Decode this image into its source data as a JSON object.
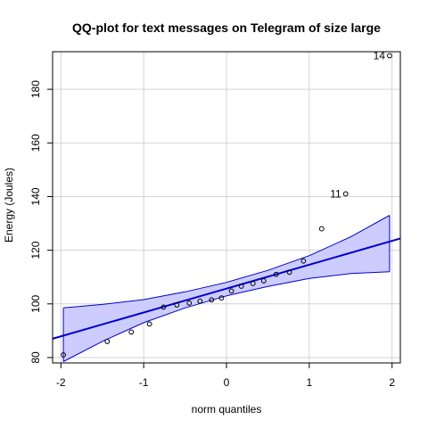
{
  "chart_data": {
    "type": "scatter",
    "title": "QQ-plot for text messages on Telegram of size large",
    "xlabel": "norm quantiles",
    "ylabel": "Energy (Joules)",
    "xlim": [
      -2.1,
      2.1
    ],
    "ylim": [
      78,
      194
    ],
    "x_ticks": [
      -2,
      -1,
      0,
      1,
      2
    ],
    "y_ticks": [
      80,
      100,
      120,
      140,
      160,
      180
    ],
    "grid": true,
    "colors": {
      "point": "#000000",
      "line": "#0000cc",
      "band_fill": "#ccccff",
      "band_edge": "#0000cc",
      "grid": "#d3d3d3"
    },
    "points": [
      {
        "x": -1.97,
        "y": 81.0
      },
      {
        "x": -1.44,
        "y": 86.0
      },
      {
        "x": -1.15,
        "y": 89.5
      },
      {
        "x": -0.93,
        "y": 92.5
      },
      {
        "x": -0.76,
        "y": 98.8
      },
      {
        "x": -0.6,
        "y": 99.6
      },
      {
        "x": -0.45,
        "y": 100.3
      },
      {
        "x": -0.32,
        "y": 101.0
      },
      {
        "x": -0.18,
        "y": 101.5
      },
      {
        "x": -0.06,
        "y": 102.2
      },
      {
        "x": 0.06,
        "y": 104.8
      },
      {
        "x": 0.18,
        "y": 106.6
      },
      {
        "x": 0.32,
        "y": 107.6
      },
      {
        "x": 0.45,
        "y": 108.6
      },
      {
        "x": 0.6,
        "y": 111.0
      },
      {
        "x": 0.76,
        "y": 111.8
      },
      {
        "x": 0.93,
        "y": 116.0
      },
      {
        "x": 1.15,
        "y": 128.0
      },
      {
        "x": 1.44,
        "y": 141.0
      },
      {
        "x": 1.97,
        "y": 192.5
      }
    ],
    "point_labels": [
      {
        "text": "11",
        "x": 1.44,
        "y": 141.0
      },
      {
        "text": "14",
        "x": 1.97,
        "y": 192.5
      }
    ],
    "reference_line": {
      "slope": 8.9,
      "intercept": 105.7
    },
    "band_upper": [
      {
        "x": -1.97,
        "y": 98.5
      },
      {
        "x": -1.5,
        "y": 99.8
      },
      {
        "x": -1.0,
        "y": 101.6
      },
      {
        "x": -0.5,
        "y": 104.5
      },
      {
        "x": 0.0,
        "y": 108.0
      },
      {
        "x": 0.5,
        "y": 112.5
      },
      {
        "x": 1.0,
        "y": 118.0
      },
      {
        "x": 1.5,
        "y": 125.0
      },
      {
        "x": 1.97,
        "y": 133.0
      }
    ],
    "band_lower": [
      {
        "x": -1.97,
        "y": 78.5
      },
      {
        "x": -1.5,
        "y": 86.0
      },
      {
        "x": -1.0,
        "y": 93.0
      },
      {
        "x": -0.5,
        "y": 98.5
      },
      {
        "x": 0.0,
        "y": 103.0
      },
      {
        "x": 0.5,
        "y": 106.5
      },
      {
        "x": 1.0,
        "y": 109.5
      },
      {
        "x": 1.5,
        "y": 111.3
      },
      {
        "x": 1.97,
        "y": 112.0
      }
    ]
  }
}
